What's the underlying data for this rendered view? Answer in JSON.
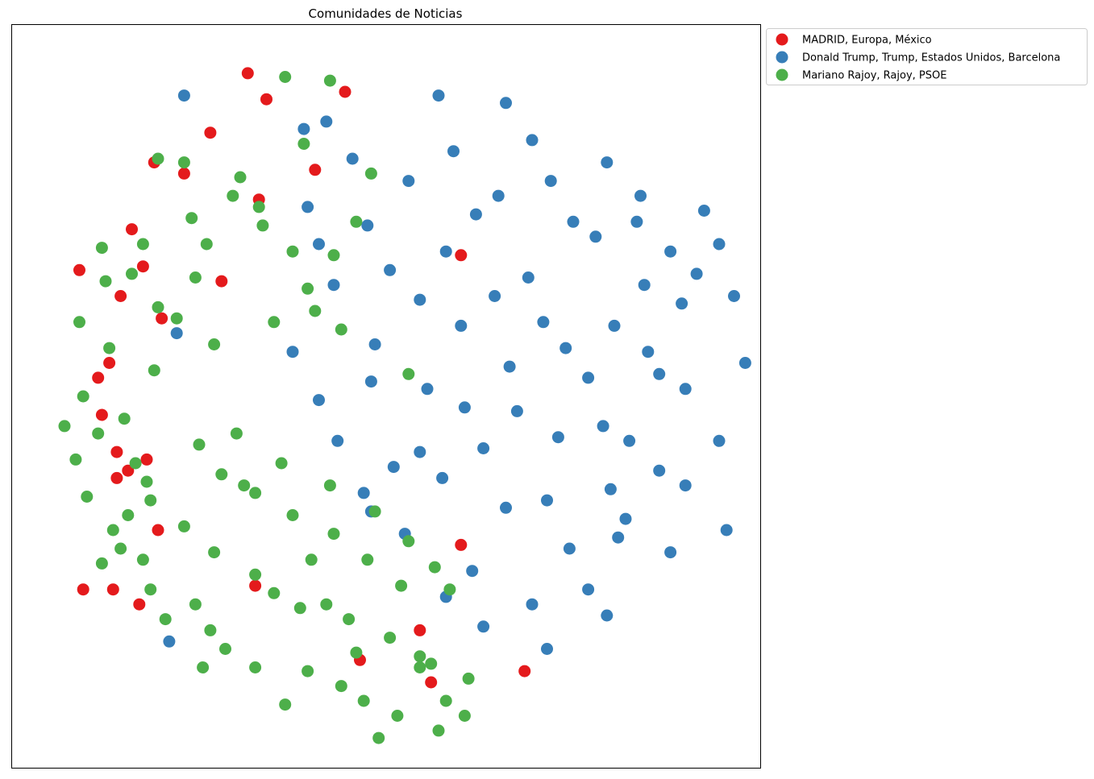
{
  "chart_data": {
    "type": "scatter",
    "title": "Comunidades de Noticias",
    "xlabel": "",
    "ylabel": "",
    "xlim": [
      -10,
      10
    ],
    "ylim": [
      -10,
      10
    ],
    "axes_ticks": "hidden",
    "grid": false,
    "legend_position": "outside-top-right",
    "series": [
      {
        "name": "MADRID, Europa, México",
        "color": "#e41a1c",
        "points": [
          [
            -3.7,
            8.7
          ],
          [
            -3.2,
            8.0
          ],
          [
            -4.7,
            7.1
          ],
          [
            -6.2,
            6.3
          ],
          [
            -5.4,
            6.0
          ],
          [
            -3.4,
            5.3
          ],
          [
            -6.5,
            3.5
          ],
          [
            -7.1,
            2.7
          ],
          [
            -6.0,
            2.1
          ],
          [
            -7.4,
            0.9
          ],
          [
            -7.6,
            -0.5
          ],
          [
            -7.2,
            -1.5
          ],
          [
            -6.9,
            -2.0
          ],
          [
            -6.1,
            -3.6
          ],
          [
            -7.3,
            -5.2
          ],
          [
            -3.5,
            -5.1
          ],
          [
            -0.7,
            -7.1
          ],
          [
            -1.1,
            8.2
          ],
          [
            -1.9,
            6.1
          ],
          [
            2.0,
            3.8
          ],
          [
            -7.7,
            0.5
          ],
          [
            -8.2,
            3.4
          ],
          [
            -6.4,
            -1.7
          ],
          [
            -4.4,
            3.1
          ],
          [
            2.0,
            -4.0
          ],
          [
            3.7,
            -7.4
          ],
          [
            -6.6,
            -5.6
          ],
          [
            -7.2,
            -2.2
          ],
          [
            -8.1,
            -5.2
          ],
          [
            1.2,
            -7.7
          ],
          [
            0.9,
            -6.3
          ],
          [
            -6.8,
            4.5
          ]
        ]
      },
      {
        "name": "Donald Trump, Trump, Estados Unidos, Barcelona",
        "color": "#377eb8",
        "points": [
          [
            -5.4,
            8.1
          ],
          [
            -2.2,
            7.2
          ],
          [
            -1.6,
            7.4
          ],
          [
            1.4,
            8.1
          ],
          [
            3.2,
            7.9
          ],
          [
            3.9,
            6.9
          ],
          [
            5.9,
            6.3
          ],
          [
            6.8,
            5.4
          ],
          [
            8.5,
            5.0
          ],
          [
            8.9,
            4.1
          ],
          [
            7.6,
            3.9
          ],
          [
            8.3,
            3.3
          ],
          [
            9.3,
            2.7
          ],
          [
            9.6,
            0.9
          ],
          [
            8.0,
            0.2
          ],
          [
            8.9,
            -1.2
          ],
          [
            7.3,
            -2.0
          ],
          [
            6.2,
            -3.8
          ],
          [
            5.4,
            -5.2
          ],
          [
            4.3,
            -6.8
          ],
          [
            2.3,
            -4.7
          ],
          [
            0.5,
            -3.7
          ],
          [
            1.5,
            -2.2
          ],
          [
            3.5,
            -0.4
          ],
          [
            4.8,
            1.3
          ],
          [
            6.1,
            1.9
          ],
          [
            3.8,
            3.2
          ],
          [
            2.4,
            4.9
          ],
          [
            0.6,
            5.8
          ],
          [
            -0.5,
            4.6
          ],
          [
            -1.4,
            3.0
          ],
          [
            -0.3,
            1.4
          ],
          [
            1.1,
            0.2
          ],
          [
            2.6,
            -1.4
          ],
          [
            4.3,
            -2.8
          ],
          [
            5.8,
            -0.8
          ],
          [
            7.3,
            0.6
          ],
          [
            6.9,
            3.0
          ],
          [
            5.0,
            4.7
          ],
          [
            1.8,
            6.6
          ],
          [
            -0.9,
            6.4
          ],
          [
            -2.1,
            5.1
          ],
          [
            -5.6,
            1.7
          ],
          [
            -5.8,
            -6.6
          ],
          [
            0.2,
            -1.9
          ],
          [
            -0.4,
            0.4
          ],
          [
            2.0,
            1.9
          ],
          [
            3.2,
            -3.0
          ],
          [
            4.9,
            -4.1
          ],
          [
            6.5,
            -1.2
          ],
          [
            8.0,
            -2.4
          ],
          [
            9.1,
            -3.6
          ],
          [
            7.6,
            -4.2
          ],
          [
            5.9,
            -5.9
          ],
          [
            3.9,
            -5.6
          ],
          [
            2.6,
            -6.2
          ],
          [
            1.6,
            -5.4
          ],
          [
            -0.4,
            -3.1
          ],
          [
            -1.3,
            -1.2
          ],
          [
            -1.8,
            -0.1
          ],
          [
            -2.5,
            1.2
          ],
          [
            -1.8,
            4.1
          ],
          [
            0.1,
            3.4
          ],
          [
            1.6,
            3.9
          ],
          [
            3.0,
            5.4
          ],
          [
            4.4,
            5.8
          ],
          [
            5.6,
            4.3
          ],
          [
            6.7,
            4.7
          ],
          [
            7.9,
            2.5
          ],
          [
            7.0,
            1.2
          ],
          [
            6.0,
            -2.5
          ],
          [
            4.6,
            -1.1
          ],
          [
            3.3,
            0.8
          ],
          [
            2.1,
            -0.3
          ],
          [
            0.9,
            -1.5
          ],
          [
            -0.6,
            -2.6
          ],
          [
            0.9,
            2.6
          ],
          [
            2.9,
            2.7
          ],
          [
            4.2,
            2.0
          ],
          [
            5.4,
            0.5
          ],
          [
            6.4,
            -3.3
          ]
        ]
      },
      {
        "name": "Mariano Rajoy, Rajoy, PSOE",
        "color": "#4daf4a",
        "points": [
          [
            -2.7,
            8.6
          ],
          [
            -1.5,
            8.5
          ],
          [
            -6.1,
            6.4
          ],
          [
            -5.4,
            6.3
          ],
          [
            -3.9,
            5.9
          ],
          [
            -3.4,
            5.1
          ],
          [
            -4.8,
            4.1
          ],
          [
            -5.1,
            3.2
          ],
          [
            -6.1,
            2.4
          ],
          [
            -7.4,
            1.3
          ],
          [
            -8.2,
            2.0
          ],
          [
            -8.1,
            0.0
          ],
          [
            -8.3,
            -1.7
          ],
          [
            -8.0,
            -2.7
          ],
          [
            -7.3,
            -3.6
          ],
          [
            -6.5,
            -4.4
          ],
          [
            -6.3,
            -5.2
          ],
          [
            -5.1,
            -5.6
          ],
          [
            -4.7,
            -6.3
          ],
          [
            -4.3,
            -6.8
          ],
          [
            -3.5,
            -7.3
          ],
          [
            -2.1,
            -7.4
          ],
          [
            -1.2,
            -7.8
          ],
          [
            -0.6,
            -8.2
          ],
          [
            0.3,
            -8.6
          ],
          [
            1.4,
            -9.0
          ],
          [
            2.1,
            -8.6
          ],
          [
            1.2,
            -7.2
          ],
          [
            0.1,
            -6.5
          ],
          [
            -1.0,
            -6.0
          ],
          [
            -2.3,
            -5.7
          ],
          [
            -3.5,
            -4.8
          ],
          [
            -4.6,
            -4.2
          ],
          [
            -5.4,
            -3.5
          ],
          [
            -6.3,
            -2.8
          ],
          [
            -6.7,
            -1.8
          ],
          [
            -7.0,
            -0.6
          ],
          [
            -6.2,
            0.7
          ],
          [
            -4.6,
            1.4
          ],
          [
            -3.0,
            2.0
          ],
          [
            -2.1,
            2.9
          ],
          [
            -1.4,
            3.8
          ],
          [
            -0.8,
            4.7
          ],
          [
            -0.4,
            6.0
          ],
          [
            -2.2,
            6.8
          ],
          [
            -4.1,
            5.4
          ],
          [
            -5.2,
            4.8
          ],
          [
            -6.5,
            4.1
          ],
          [
            -7.6,
            4.0
          ],
          [
            -7.5,
            3.1
          ],
          [
            -6.8,
            3.3
          ],
          [
            -5.6,
            2.1
          ],
          [
            -4.0,
            -1.0
          ],
          [
            -2.8,
            -1.8
          ],
          [
            -1.5,
            -2.4
          ],
          [
            -0.3,
            -3.1
          ],
          [
            0.6,
            -3.9
          ],
          [
            1.3,
            -4.6
          ],
          [
            0.4,
            -5.1
          ],
          [
            -0.5,
            -4.4
          ],
          [
            -1.4,
            -3.7
          ],
          [
            -2.5,
            -3.2
          ],
          [
            -3.5,
            -2.6
          ],
          [
            -4.4,
            -2.1
          ],
          [
            -5.0,
            -1.3
          ],
          [
            -2.0,
            -4.4
          ],
          [
            -3.0,
            -5.3
          ],
          [
            -1.6,
            -5.6
          ],
          [
            -0.8,
            -6.9
          ],
          [
            0.9,
            -7.0
          ],
          [
            2.2,
            -7.6
          ],
          [
            1.7,
            -5.2
          ],
          [
            -6.9,
            -3.2
          ],
          [
            -7.6,
            -4.5
          ],
          [
            0.6,
            0.6
          ],
          [
            -1.2,
            1.8
          ],
          [
            -2.5,
            3.9
          ],
          [
            -3.3,
            4.6
          ],
          [
            -1.9,
            2.3
          ],
          [
            -3.8,
            -2.4
          ],
          [
            -5.9,
            -6.0
          ],
          [
            -4.9,
            -7.3
          ],
          [
            -2.7,
            -8.3
          ],
          [
            -0.2,
            -9.2
          ],
          [
            0.9,
            -7.3
          ],
          [
            1.6,
            -8.2
          ],
          [
            -7.7,
            -1.0
          ],
          [
            -8.6,
            -0.8
          ],
          [
            -7.1,
            -4.1
          ],
          [
            -6.4,
            -2.3
          ]
        ]
      }
    ]
  }
}
